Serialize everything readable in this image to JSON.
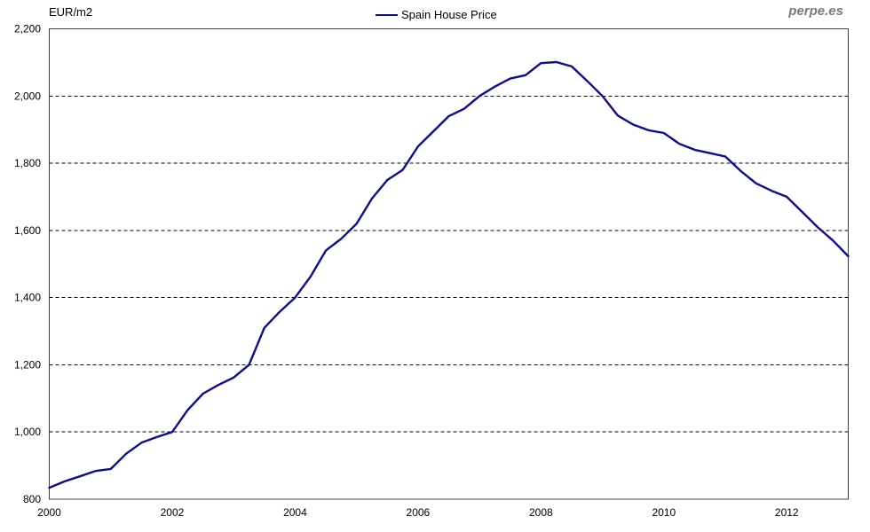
{
  "header": {
    "title": "EUR/m2",
    "watermark": "perpe.es"
  },
  "chart_data": {
    "type": "line",
    "title": "EUR/m2",
    "ylabel": "EUR/m2",
    "xlabel": "",
    "ylim": [
      800,
      2200
    ],
    "y_ticks": [
      800,
      1000,
      1200,
      1400,
      1600,
      1800,
      2000,
      2200
    ],
    "gridline_values": [
      1000,
      1200,
      1400,
      1600,
      1800,
      2000
    ],
    "grid": "horizontal-dashed",
    "legend_position": "top-center",
    "line_color": "#0d0d8f",
    "border_color": "#404040",
    "x_start": "2000 Q1",
    "x_end": "2013 Q1",
    "x_frequency": "quarterly",
    "x_tick_labels": [
      "2000",
      "2002",
      "2004",
      "2006",
      "2008",
      "2010",
      "2012"
    ],
    "x_tick_quarter_indices": [
      0,
      8,
      16,
      24,
      32,
      40,
      48
    ],
    "series": [
      {
        "name": "Spain House Price",
        "color": "#0d0d8f",
        "values": [
          834,
          853,
          868,
          884,
          890,
          935,
          968,
          985,
          1000,
          1065,
          1114,
          1140,
          1162,
          1200,
          1310,
          1358,
          1400,
          1462,
          1540,
          1575,
          1620,
          1695,
          1750,
          1780,
          1850,
          1895,
          1940,
          1962,
          2000,
          2028,
          2052,
          2062,
          2098,
          2101,
          2088,
          2045,
          2000,
          1942,
          1915,
          1898,
          1890,
          1858,
          1840,
          1830,
          1820,
          1777,
          1740,
          1718,
          1700,
          1655,
          1610,
          1570,
          1523
        ]
      }
    ]
  }
}
